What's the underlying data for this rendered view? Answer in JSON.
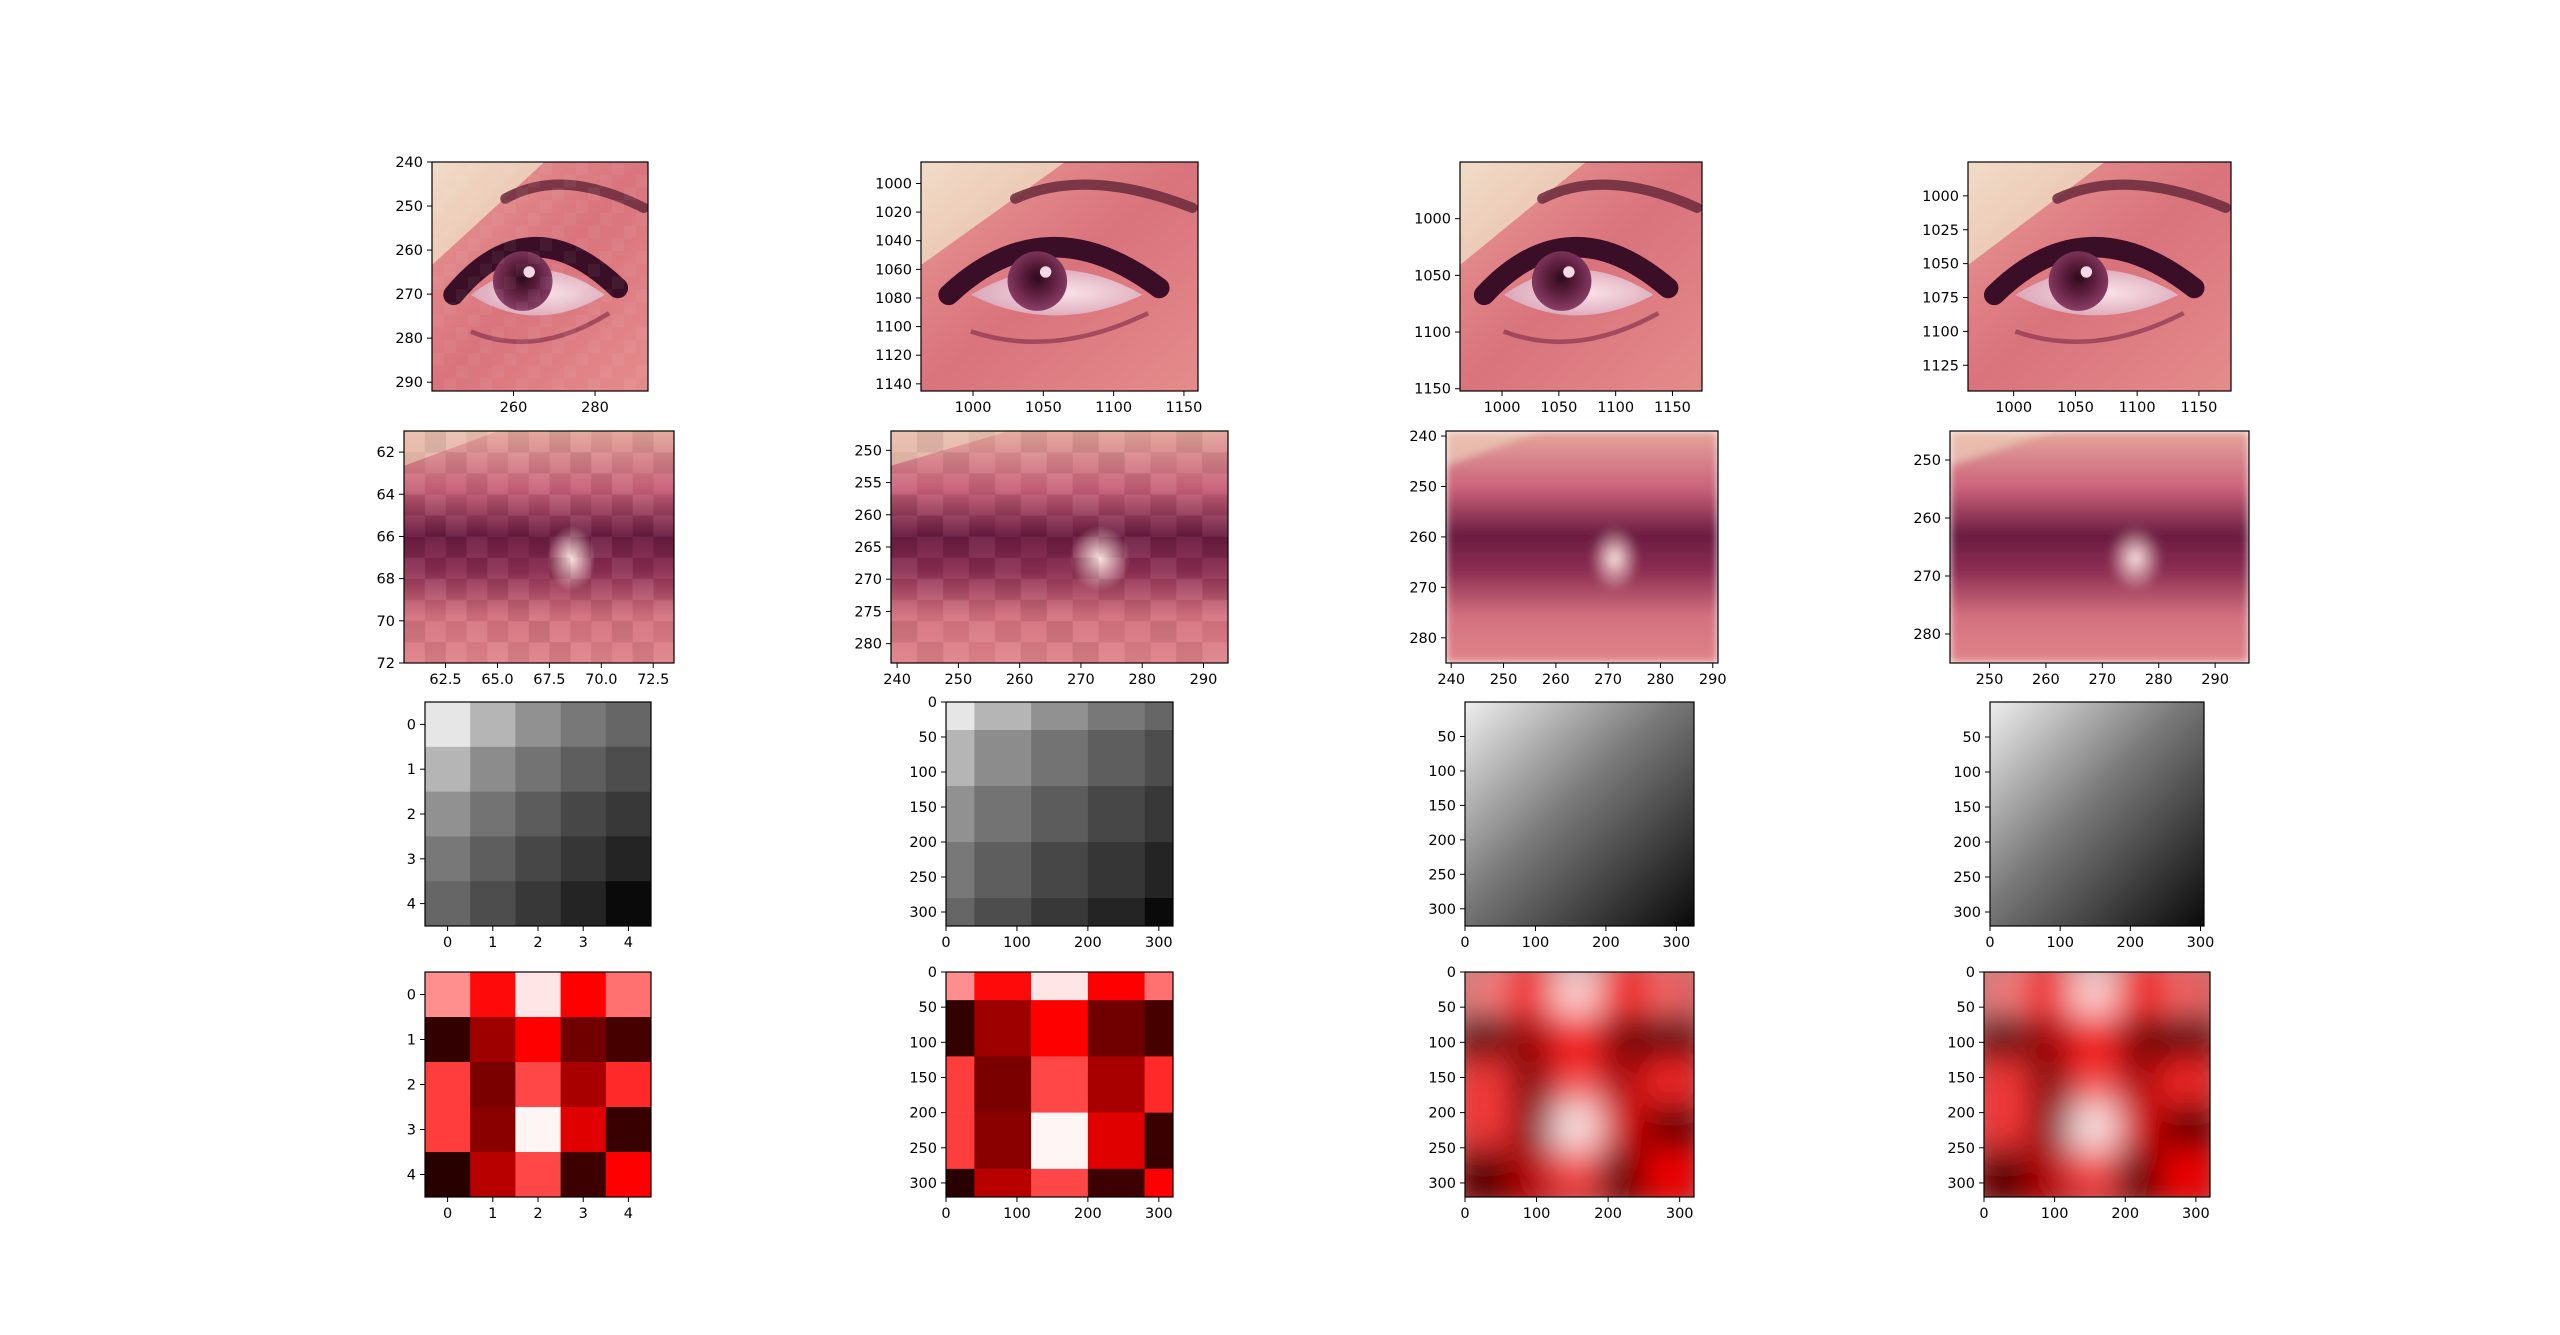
{
  "chart_data": [
    {
      "id": "r1c1",
      "type": "image",
      "content": "eye",
      "x": {
        "range": [
          240,
          293
        ],
        "ticks": [
          260,
          280
        ]
      },
      "y": {
        "range": [
          240,
          292
        ],
        "ticks": [
          240,
          250,
          260,
          270,
          280,
          290
        ]
      }
    },
    {
      "id": "r1c2",
      "type": "image",
      "content": "eye",
      "x": {
        "range": [
          963,
          1160
        ],
        "ticks": [
          1000,
          1050,
          1100,
          1150
        ]
      },
      "y": {
        "range": [
          985,
          1145
        ],
        "ticks": [
          1000,
          1020,
          1040,
          1060,
          1080,
          1100,
          1120,
          1140
        ]
      }
    },
    {
      "id": "r1c3",
      "type": "image",
      "content": "eye",
      "x": {
        "range": [
          963,
          1176
        ],
        "ticks": [
          1000,
          1050,
          1100,
          1150
        ]
      },
      "y": {
        "range": [
          950,
          1152
        ],
        "ticks": [
          1000,
          1050,
          1100,
          1150
        ]
      }
    },
    {
      "id": "r1c4",
      "type": "image",
      "content": "eye",
      "x": {
        "range": [
          963,
          1176
        ],
        "ticks": [
          1000,
          1050,
          1100,
          1150
        ]
      },
      "y": {
        "range": [
          975,
          1144
        ],
        "ticks": [
          1000,
          1025,
          1050,
          1075,
          1100,
          1125
        ]
      }
    },
    {
      "id": "r2c1",
      "type": "image",
      "content": "eye-closeup-pixelated",
      "x": {
        "range": [
          60.5,
          73.5
        ],
        "ticks": [
          "62.5",
          "65.0",
          "67.5",
          "70.0",
          "72.5"
        ]
      },
      "y": {
        "range": [
          61,
          72
        ],
        "ticks": [
          62,
          64,
          66,
          68,
          70,
          72
        ]
      }
    },
    {
      "id": "r2c2",
      "type": "image",
      "content": "eye-closeup-pixelated",
      "x": {
        "range": [
          239,
          294
        ],
        "ticks": [
          240,
          250,
          260,
          270,
          280,
          290
        ]
      },
      "y": {
        "range": [
          247,
          283
        ],
        "ticks": [
          250,
          255,
          260,
          265,
          270,
          275,
          280
        ]
      }
    },
    {
      "id": "r2c3",
      "type": "image",
      "content": "eye-closeup-smooth",
      "x": {
        "range": [
          239,
          291
        ],
        "ticks": [
          240,
          250,
          260,
          270,
          280,
          290
        ]
      },
      "y": {
        "range": [
          239,
          285
        ],
        "ticks": [
          240,
          250,
          260,
          270,
          280
        ]
      }
    },
    {
      "id": "r2c4",
      "type": "image",
      "content": "eye-closeup-smooth",
      "x": {
        "range": [
          243,
          296
        ],
        "ticks": [
          250,
          260,
          270,
          280,
          290
        ]
      },
      "y": {
        "range": [
          245,
          285
        ],
        "ticks": [
          250,
          260,
          270,
          280
        ]
      }
    },
    {
      "id": "r3c1",
      "type": "heatmap",
      "cmap": "gray",
      "x": {
        "range": [
          -0.5,
          4.5
        ],
        "ticks": [
          0,
          1,
          2,
          3,
          4
        ]
      },
      "y": {
        "range": [
          -0.5,
          4.5
        ],
        "ticks": [
          0,
          1,
          2,
          3,
          4
        ]
      },
      "values": [
        [
          0.9,
          0.71,
          0.57,
          0.47,
          0.4
        ],
        [
          0.71,
          0.55,
          0.45,
          0.37,
          0.3
        ],
        [
          0.57,
          0.45,
          0.36,
          0.28,
          0.22
        ],
        [
          0.47,
          0.37,
          0.28,
          0.21,
          0.14
        ],
        [
          0.4,
          0.3,
          0.22,
          0.14,
          0.04
        ]
      ]
    },
    {
      "id": "r3c2",
      "type": "heatmap",
      "cmap": "gray",
      "x": {
        "range": [
          0,
          320
        ],
        "ticks": [
          0,
          100,
          200,
          300
        ]
      },
      "y": {
        "range": [
          0,
          320
        ],
        "ticks": [
          0,
          50,
          100,
          150,
          200,
          250,
          300
        ]
      },
      "x_edges": [
        0,
        40,
        120,
        200,
        280,
        320
      ],
      "y_edges": [
        0,
        40,
        120,
        200,
        280,
        320
      ],
      "values": [
        [
          0.9,
          0.71,
          0.57,
          0.47,
          0.4
        ],
        [
          0.71,
          0.55,
          0.45,
          0.37,
          0.3
        ],
        [
          0.57,
          0.45,
          0.36,
          0.28,
          0.22
        ],
        [
          0.47,
          0.37,
          0.28,
          0.21,
          0.14
        ],
        [
          0.4,
          0.3,
          0.22,
          0.14,
          0.04
        ]
      ]
    },
    {
      "id": "r3c3",
      "type": "heatmap",
      "cmap": "gray",
      "interpolation": "smooth",
      "x": {
        "range": [
          0,
          325
        ],
        "ticks": [
          0,
          100,
          200,
          300
        ]
      },
      "y": {
        "range": [
          0,
          325
        ],
        "ticks": [
          50,
          100,
          150,
          200,
          250,
          300
        ]
      }
    },
    {
      "id": "r3c4",
      "type": "heatmap",
      "cmap": "gray",
      "interpolation": "smooth",
      "x": {
        "range": [
          0,
          305
        ],
        "ticks": [
          0,
          100,
          200,
          300
        ]
      },
      "y": {
        "range": [
          0,
          320
        ],
        "ticks": [
          50,
          100,
          150,
          200,
          250,
          300
        ]
      }
    },
    {
      "id": "r4c1",
      "type": "heatmap",
      "cmap": "red",
      "x": {
        "range": [
          -0.5,
          4.5
        ],
        "ticks": [
          0,
          1,
          2,
          3,
          4
        ]
      },
      "y": {
        "range": [
          -0.5,
          4.5
        ],
        "ticks": [
          0,
          1,
          2,
          3,
          4
        ]
      },
      "values": [
        [
          0.78,
          0.52,
          0.95,
          0.5,
          0.72
        ],
        [
          0.1,
          0.31,
          0.5,
          0.22,
          0.14
        ],
        [
          0.62,
          0.24,
          0.64,
          0.33,
          0.58
        ],
        [
          0.62,
          0.27,
          0.98,
          0.44,
          0.11
        ],
        [
          0.08,
          0.36,
          0.64,
          0.12,
          0.5
        ]
      ]
    },
    {
      "id": "r4c2",
      "type": "heatmap",
      "cmap": "red",
      "x": {
        "range": [
          0,
          320
        ],
        "ticks": [
          0,
          100,
          200,
          300
        ]
      },
      "y": {
        "range": [
          0,
          320
        ],
        "ticks": [
          0,
          50,
          100,
          150,
          200,
          250,
          300
        ]
      },
      "x_edges": [
        0,
        40,
        120,
        200,
        280,
        320
      ],
      "y_edges": [
        0,
        40,
        120,
        200,
        280,
        320
      ],
      "values": [
        [
          0.78,
          0.52,
          0.95,
          0.5,
          0.72
        ],
        [
          0.1,
          0.31,
          0.5,
          0.22,
          0.14
        ],
        [
          0.62,
          0.24,
          0.64,
          0.33,
          0.58
        ],
        [
          0.62,
          0.27,
          0.98,
          0.44,
          0.11
        ],
        [
          0.08,
          0.36,
          0.64,
          0.12,
          0.5
        ]
      ]
    },
    {
      "id": "r4c3",
      "type": "heatmap",
      "cmap": "red",
      "interpolation": "smooth",
      "x": {
        "range": [
          0,
          320
        ],
        "ticks": [
          0,
          100,
          200,
          300
        ]
      },
      "y": {
        "range": [
          0,
          320
        ],
        "ticks": [
          0,
          50,
          100,
          150,
          200,
          250,
          300
        ]
      }
    },
    {
      "id": "r4c4",
      "type": "heatmap",
      "cmap": "red",
      "interpolation": "smooth",
      "x": {
        "range": [
          0,
          320
        ],
        "ticks": [
          0,
          100,
          200,
          300
        ]
      },
      "y": {
        "range": [
          0,
          320
        ],
        "ticks": [
          0,
          50,
          100,
          150,
          200,
          250,
          300
        ]
      }
    }
  ]
}
